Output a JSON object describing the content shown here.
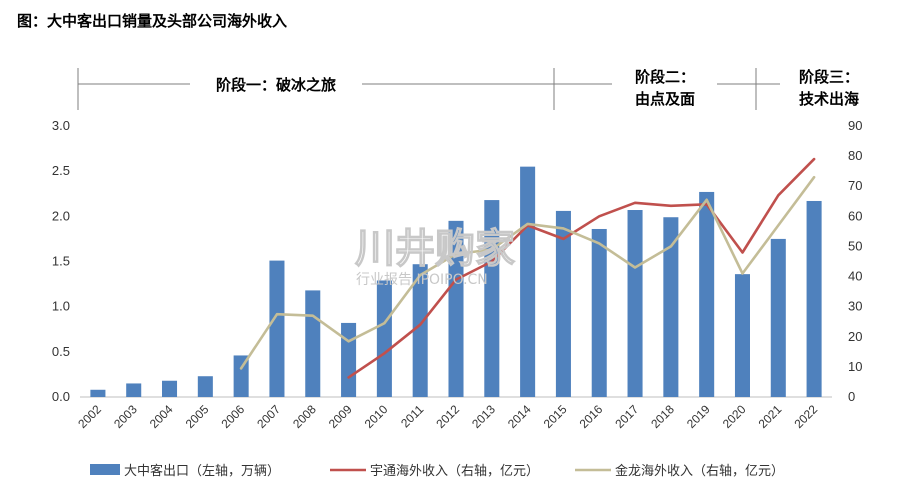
{
  "title": "图：大中客出口销量及头部公司海外收入",
  "watermark": {
    "main": "川井购家",
    "sub": "行业报告 IPOIPO.CN"
  },
  "chart_data": {
    "type": "bar",
    "categories": [
      "2002",
      "2003",
      "2004",
      "2005",
      "2006",
      "2007",
      "2008",
      "2009",
      "2010",
      "2011",
      "2012",
      "2013",
      "2014",
      "2015",
      "2016",
      "2017",
      "2018",
      "2019",
      "2020",
      "2021",
      "2022"
    ],
    "left_axis": {
      "ylim": [
        0,
        3.0
      ],
      "ticks": [
        "0.0",
        "0.5",
        "1.0",
        "1.5",
        "2.0",
        "2.5",
        "3.0"
      ]
    },
    "right_axis": {
      "ylim": [
        0,
        90
      ],
      "ticks": [
        "0",
        "10",
        "20",
        "30",
        "40",
        "50",
        "60",
        "70",
        "80",
        "90"
      ]
    },
    "phases": [
      {
        "label": "阶段一：破冰之旅"
      },
      {
        "label": "阶段二：由点及面"
      },
      {
        "label": "阶段三：技术出海"
      }
    ],
    "series": [
      {
        "name": "大中客出口（左轴，万辆）",
        "kind": "bar",
        "axis": "left",
        "color": "#4f81bd",
        "values": [
          0.08,
          0.15,
          0.18,
          0.23,
          0.46,
          1.51,
          1.18,
          0.82,
          1.29,
          1.47,
          1.95,
          2.18,
          2.55,
          2.06,
          1.86,
          2.07,
          1.99,
          2.27,
          1.36,
          1.75,
          2.17
        ]
      },
      {
        "name": "宇通海外收入（右轴，亿元）",
        "kind": "line",
        "axis": "right",
        "color": "#c0504d",
        "values": [
          null,
          null,
          null,
          null,
          null,
          null,
          null,
          6.5,
          14.5,
          24,
          39,
          45,
          57,
          52.5,
          60,
          64.5,
          63.5,
          64,
          48,
          67,
          79
        ]
      },
      {
        "name": "金龙海外收入（右轴，亿元）",
        "kind": "line",
        "axis": "right",
        "color": "#c4bd97",
        "values": [
          null,
          null,
          null,
          null,
          9.5,
          27.5,
          27,
          18.5,
          24.5,
          40.5,
          47.5,
          49,
          57.5,
          56,
          51,
          43,
          50,
          65.5,
          41,
          57,
          73
        ]
      }
    ]
  }
}
